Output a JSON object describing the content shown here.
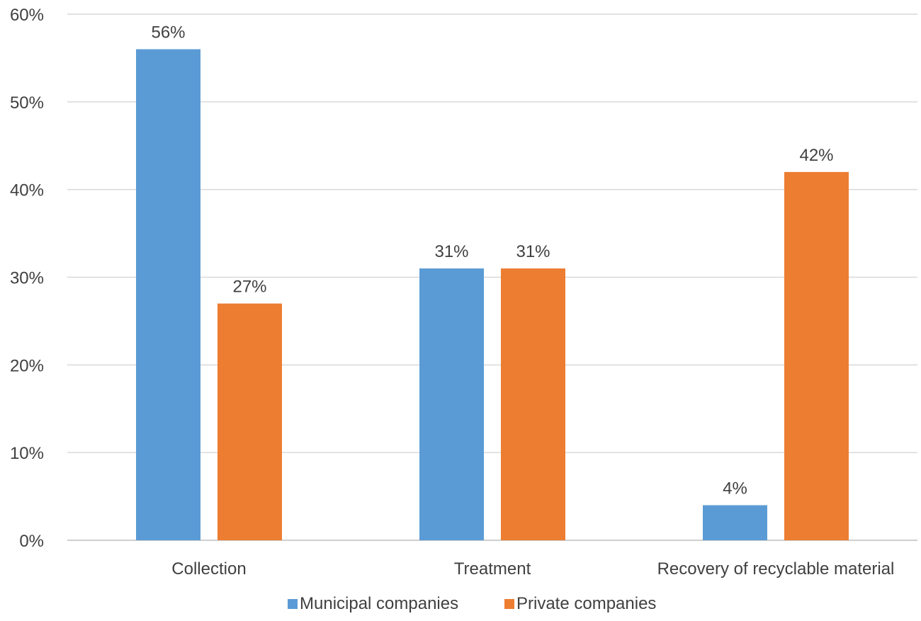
{
  "chart_data": {
    "type": "bar",
    "categories": [
      "Collection",
      "Treatment",
      "Recovery of recyclable material"
    ],
    "series": [
      {
        "name": "Municipal companies",
        "values": [
          56,
          31,
          4
        ],
        "color": "#5b9bd5"
      },
      {
        "name": "Private companies",
        "values": [
          27,
          31,
          42
        ],
        "color": "#ed7d31"
      }
    ],
    "value_labels": [
      [
        "56%",
        "31%",
        "4%"
      ],
      [
        "27%",
        "31%",
        "42%"
      ]
    ],
    "yticks": [
      0,
      10,
      20,
      30,
      40,
      50,
      60
    ],
    "ytick_labels": [
      "0%",
      "10%",
      "20%",
      "30%",
      "40%",
      "50%",
      "60%"
    ],
    "ylim": [
      0,
      60
    ],
    "grid": true,
    "legend": "bottom-center",
    "title": "",
    "xlabel": "",
    "ylabel": ""
  }
}
